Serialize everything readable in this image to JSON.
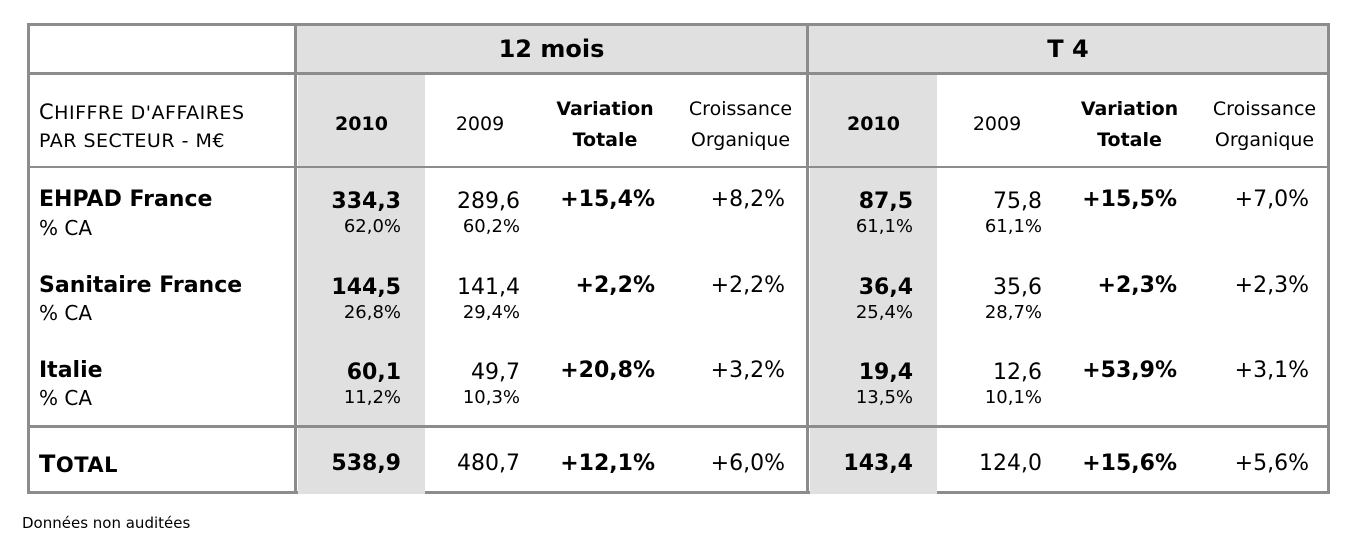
{
  "groups": {
    "g1": "12 mois",
    "g2": "T 4"
  },
  "row_header": {
    "line1_cap": "C",
    "line1_rest": "HIFFRE D'AFFAIRES",
    "line2": "PAR SECTEUR - M€"
  },
  "columns": {
    "y2010": "2010",
    "y2009": "2009",
    "variation_l1": "Variation",
    "variation_l2": "Totale",
    "croissance_l1": "Croissance",
    "croissance_l2": "Organique"
  },
  "rows": [
    {
      "label": "EHPAD France",
      "sublabel": "% CA",
      "m12": {
        "v2010": "334,3",
        "p2010": "62,0%",
        "v2009": "289,6",
        "p2009": "60,2%",
        "var": "+15,4%",
        "org": "+8,2%"
      },
      "t4": {
        "v2010": "87,5",
        "p2010": "61,1%",
        "v2009": "75,8",
        "p2009": "61,1%",
        "var": "+15,5%",
        "org": "+7,0%"
      }
    },
    {
      "label": "Sanitaire France",
      "sublabel": "% CA",
      "m12": {
        "v2010": "144,5",
        "p2010": "26,8%",
        "v2009": "141,4",
        "p2009": "29,4%",
        "var": "+2,2%",
        "org": "+2,2%"
      },
      "t4": {
        "v2010": "36,4",
        "p2010": "25,4%",
        "v2009": "35,6",
        "p2009": "28,7%",
        "var": "+2,3%",
        "org": "+2,3%"
      }
    },
    {
      "label": "Italie",
      "sublabel": "% CA",
      "m12": {
        "v2010": "60,1",
        "p2010": "11,2%",
        "v2009": "49,7",
        "p2009": "10,3%",
        "var": "+20,8%",
        "org": "+3,2%"
      },
      "t4": {
        "v2010": "19,4",
        "p2010": "13,5%",
        "v2009": "12,6",
        "p2009": "10,1%",
        "var": "+53,9%",
        "org": "+3,1%"
      }
    }
  ],
  "total": {
    "label_cap": "T",
    "label_rest": "OTAL",
    "m12": {
      "v2010": "538,9",
      "v2009": "480,7",
      "var": "+12,1%",
      "org": "+6,0%"
    },
    "t4": {
      "v2010": "143,4",
      "v2009": "124,0",
      "var": "+15,6%",
      "org": "+5,6%"
    }
  },
  "footnote": "Données non auditées"
}
